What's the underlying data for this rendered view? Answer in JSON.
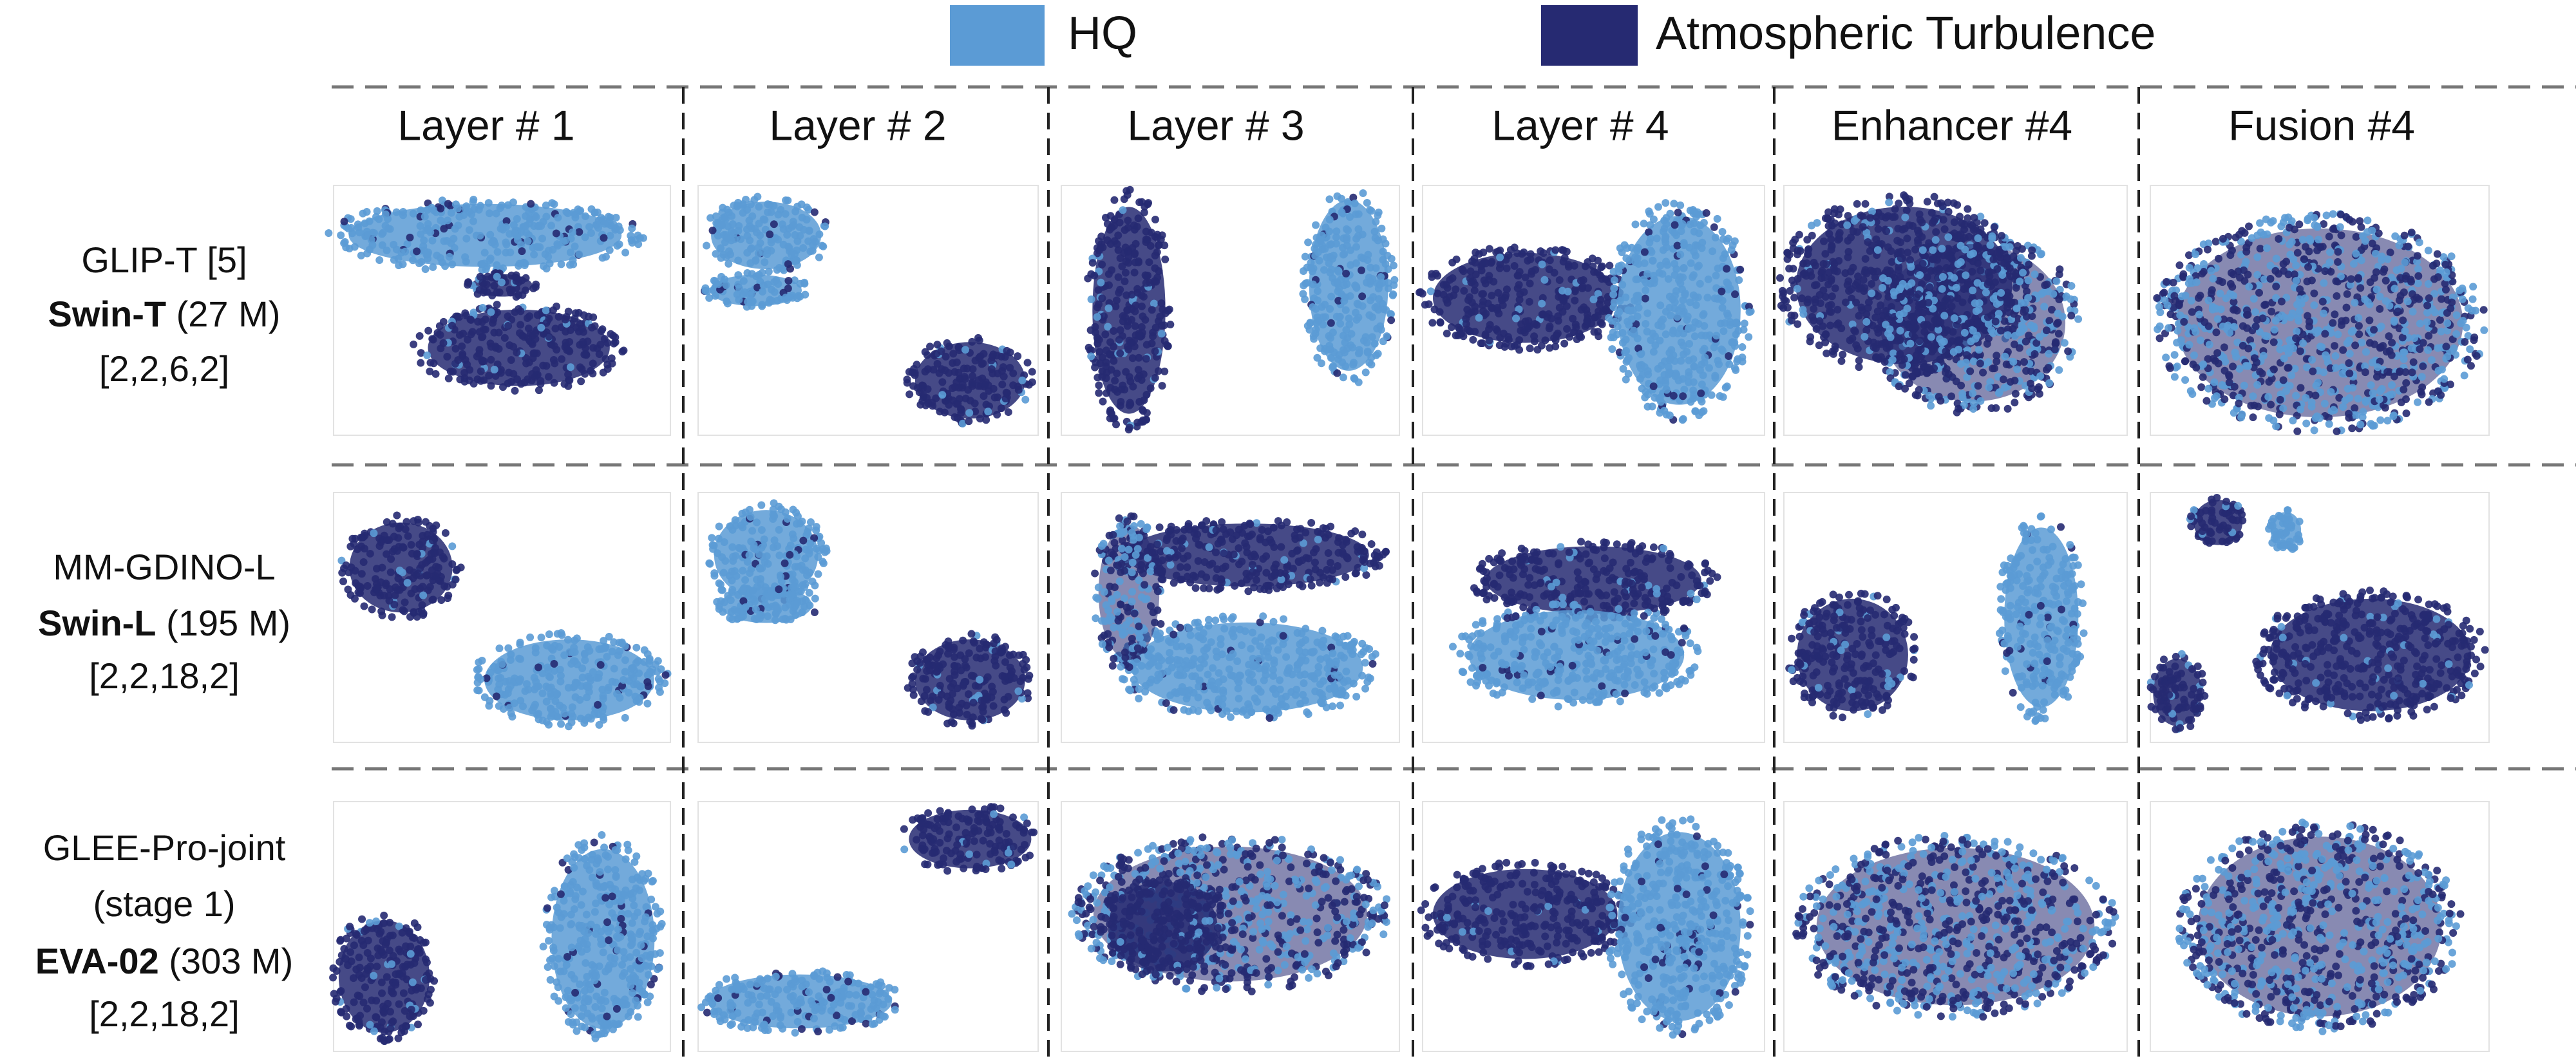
{
  "legend": [
    {
      "label": "HQ",
      "color": "#5b9bd5"
    },
    {
      "label": "Atmospheric Turbulence",
      "color": "#262a72"
    }
  ],
  "columns": [
    "Layer # 1",
    "Layer # 2",
    "Layer # 3",
    "Layer # 4",
    "Enhancer #4",
    "Fusion #4"
  ],
  "rows": [
    {
      "model": [
        "GLIP-T [5]"
      ],
      "backbone": "Swin-T",
      "params": "(27 M)",
      "config": "[2,2,6,2]"
    },
    {
      "model": [
        "MM-GDINO-L"
      ],
      "backbone": "Swin-L",
      "params": "(195 M)",
      "config": "[2,2,18,2]"
    },
    {
      "model": [
        "GLEE-Pro-joint",
        "(stage 1)"
      ],
      "backbone": "EVA-02",
      "params": "(303 M)",
      "config": "[2,2,18,2]"
    }
  ]
}
